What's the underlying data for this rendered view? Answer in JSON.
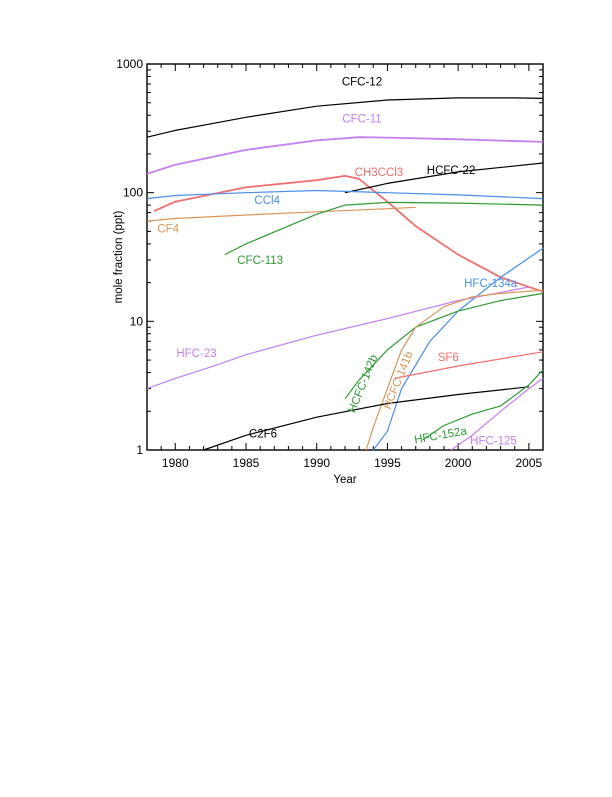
{
  "chart_data": {
    "type": "line",
    "y_scale": "log",
    "xlabel": "Year",
    "ylabel": "mole fraction (ppt)",
    "xlim": [
      1978,
      2006
    ],
    "ylim": [
      1,
      1000
    ],
    "grid": false,
    "legend": "inline labels",
    "xticks": [
      {
        "v": 1980,
        "label": "1980"
      },
      {
        "v": 1985,
        "label": "1985"
      },
      {
        "v": 1990,
        "label": "1990"
      },
      {
        "v": 1995,
        "label": "1995"
      },
      {
        "v": 2000,
        "label": "2000"
      },
      {
        "v": 2005,
        "label": "2005"
      }
    ],
    "yticks": [
      {
        "v": 1,
        "label": "1"
      },
      {
        "v": 10,
        "label": "10"
      },
      {
        "v": 100,
        "label": "100"
      },
      {
        "v": 1000,
        "label": "1000"
      }
    ],
    "series": [
      {
        "key": "cfc12",
        "name": "CFC-12",
        "color": "#000000",
        "x": [
          1978,
          1980,
          1985,
          1990,
          1995,
          2000,
          2004,
          2006
        ],
        "y": [
          270,
          305,
          385,
          470,
          525,
          545,
          545,
          540
        ],
        "label_year": 1993.2,
        "label_y": 680,
        "anchor": "middle"
      },
      {
        "key": "cfc11",
        "name": "CFC-11",
        "color": "#c37ef0",
        "x": [
          1978,
          1980,
          1985,
          1990,
          1993,
          1995,
          2000,
          2006
        ],
        "y": [
          140,
          165,
          215,
          255,
          270,
          268,
          260,
          248
        ],
        "label_year": 1993.2,
        "label_y": 350,
        "anchor": "middle"
      },
      {
        "key": "ch3ccl3",
        "name": "CH3CCl3",
        "sub": "3",
        "color": "#ef6f6f",
        "x": [
          1978.5,
          1980,
          1985,
          1990,
          1992,
          1993,
          1995,
          1997,
          2000,
          2003,
          2006
        ],
        "y": [
          72,
          85,
          110,
          125,
          135,
          128,
          85,
          55,
          33,
          22,
          17
        ],
        "label_year": 1994.4,
        "label_y": 135,
        "anchor": "middle"
      },
      {
        "key": "hcfc22",
        "name": "HCFC-22",
        "color": "#000000",
        "x": [
          1992,
          1995,
          2000,
          2006
        ],
        "y": [
          100,
          118,
          145,
          170
        ],
        "label_year": 1999.5,
        "label_y": 140,
        "anchor": "middle"
      },
      {
        "key": "ccl4",
        "name": "CCl4",
        "sub": "4",
        "color": "#4a8ee8",
        "x": [
          1978,
          1980,
          1985,
          1990,
          1995,
          2000,
          2006
        ],
        "y": [
          90,
          95,
          100,
          104,
          100,
          96,
          90
        ],
        "label_year": 1986.5,
        "label_y": 82,
        "anchor": "middle"
      },
      {
        "key": "cf4",
        "name": "CF4",
        "sub": "4",
        "color": "#d9965a",
        "x": [
          1978,
          1980,
          1985,
          1990,
          1995,
          1997
        ],
        "y": [
          60,
          63,
          67,
          71,
          75,
          77
        ],
        "label_year": 1979.5,
        "label_y": 49,
        "anchor": "middle"
      },
      {
        "key": "cfc113",
        "name": "CFC-113",
        "color": "#2e9a34",
        "x": [
          1983.5,
          1985,
          1988,
          1990,
          1992,
          1995,
          2000,
          2006
        ],
        "y": [
          33,
          40,
          55,
          68,
          80,
          84,
          83,
          80
        ],
        "label_year": 1986,
        "label_y": 28,
        "anchor": "middle"
      },
      {
        "key": "hfc134a",
        "name": "HFC-134a",
        "color": "#4a8ee8",
        "x": [
          1994,
          1995,
          1996,
          1998,
          2000,
          2003,
          2006
        ],
        "y": [
          1,
          1.4,
          3,
          7,
          12,
          22,
          37
        ],
        "label_year": 2002.3,
        "label_y": 18.5,
        "anchor": "middle"
      },
      {
        "key": "hfc23",
        "name": "HFC-23",
        "color": "#c37ef0",
        "x": [
          1978,
          1980,
          1983,
          1985,
          1990,
          1995,
          2000,
          2005
        ],
        "y": [
          3,
          3.6,
          4.6,
          5.5,
          7.8,
          10.5,
          14.5,
          18.5
        ],
        "label_year": 1981.5,
        "label_y": 5.3,
        "anchor": "middle"
      },
      {
        "key": "hcfc142b",
        "name": "HCFC-142b",
        "color": "#2e9a34",
        "x": [
          1992,
          1993,
          1995,
          1997,
          2000,
          2003,
          2006
        ],
        "y": [
          2.5,
          3.5,
          6,
          9,
          12,
          14.5,
          16.5
        ],
        "label_year": 1993.5,
        "label_y": 3.2,
        "anchor": "middle",
        "rotate": -68
      },
      {
        "key": "hcfc141b",
        "name": "HCFC-141b",
        "color": "#d9965a",
        "x": [
          1993.5,
          1994,
          1995,
          1996,
          1997,
          1999,
          2001,
          2003,
          2006
        ],
        "y": [
          1,
          1.5,
          3,
          6,
          9,
          13,
          15.5,
          16.5,
          17.5
        ],
        "label_year": 1996,
        "label_y": 3.4,
        "anchor": "middle",
        "rotate": -68
      },
      {
        "key": "sf6",
        "name": "SF6",
        "sub": "6",
        "color": "#ef6f6f",
        "x": [
          1995.5,
          2000,
          2006
        ],
        "y": [
          3.6,
          4.5,
          5.8
        ],
        "label_year": 1999.3,
        "label_y": 4.9,
        "anchor": "middle"
      },
      {
        "key": "c2f6",
        "name": "C2F6",
        "sub": "6",
        "color": "#000000",
        "x": [
          1982,
          1985,
          1990,
          1995,
          2000,
          2005
        ],
        "y": [
          1,
          1.3,
          1.8,
          2.3,
          2.7,
          3.1
        ],
        "label_year": 1986.2,
        "label_y": 1.25,
        "anchor": "middle"
      },
      {
        "key": "hfc152a",
        "name": "HFC-152a",
        "color": "#2e9a34",
        "x": [
          1997.5,
          1999,
          2001,
          2003,
          2005,
          2006
        ],
        "y": [
          1.2,
          1.55,
          1.9,
          2.2,
          3.2,
          4.2
        ],
        "label_year": 1998.8,
        "label_y": 1.22,
        "anchor": "middle",
        "rotate": -10
      },
      {
        "key": "hfc125",
        "name": "HFC-125",
        "color": "#c37ef0",
        "x": [
          1999.5,
          2001,
          2003,
          2005,
          2006
        ],
        "y": [
          1,
          1.3,
          2,
          3,
          3.6
        ],
        "label_year": 2002.5,
        "label_y": 1.1,
        "anchor": "middle"
      }
    ]
  }
}
